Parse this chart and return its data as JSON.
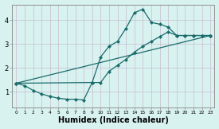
{
  "background_color": "#d8f2f0",
  "grid_color": "#c8bcd0",
  "line_color": "#1a6b6b",
  "marker": "D",
  "markersize": 2.2,
  "linewidth": 0.9,
  "xlabel": "Humidex (Indice chaleur)",
  "xlabel_fontsize": 7,
  "xlim": [
    -0.5,
    23.5
  ],
  "ylim": [
    0.35,
    4.65
  ],
  "line1_x": [
    0,
    1,
    2,
    3,
    4,
    5,
    6,
    7,
    8,
    9,
    10,
    11,
    12,
    13,
    14,
    15,
    16,
    17,
    18,
    19,
    20,
    21,
    22,
    23
  ],
  "line1_y": [
    1.35,
    1.25,
    1.05,
    0.9,
    0.8,
    0.72,
    0.68,
    0.68,
    0.65,
    1.38,
    2.45,
    2.9,
    3.1,
    3.65,
    4.3,
    4.45,
    3.9,
    3.82,
    3.7,
    3.35,
    3.35,
    3.35,
    3.35,
    3.35
  ],
  "line2_x": [
    0,
    23
  ],
  "line2_y": [
    1.35,
    3.35
  ],
  "line3_x": [
    0,
    9,
    10,
    11,
    12,
    13,
    14,
    15,
    16,
    17,
    18,
    19,
    20,
    21,
    22,
    23
  ],
  "line3_y": [
    1.35,
    1.38,
    1.38,
    1.85,
    2.1,
    2.35,
    2.65,
    2.9,
    3.1,
    3.3,
    3.5,
    3.35,
    3.35,
    3.35,
    3.35,
    3.35
  ]
}
